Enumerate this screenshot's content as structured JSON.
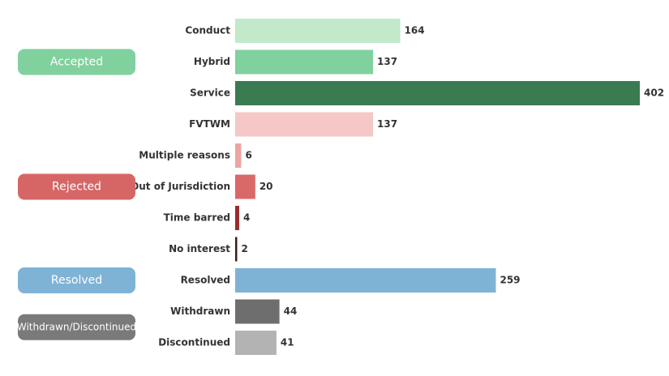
{
  "chart_data": {
    "type": "bar",
    "orientation": "horizontal",
    "groups": [
      {
        "name": "Accepted",
        "color": "#80d19e",
        "categories": [
          "Conduct",
          "Hybrid",
          "Service"
        ],
        "values": [
          164,
          137,
          402
        ],
        "colors": [
          "#c2e9c9",
          "#80d19e",
          "#3b7b51"
        ]
      },
      {
        "name": "Rejected",
        "color": "#d66666",
        "categories": [
          "FVTWM",
          "Multiple reasons",
          "Out of Jurisdiction",
          "Time barred",
          "No interest"
        ],
        "values": [
          137,
          6,
          20,
          4,
          2
        ],
        "colors": [
          "#f6c7c7",
          "#eda4a4",
          "#d96868",
          "#9a2c2c",
          "#3a1a1a"
        ]
      },
      {
        "name": "Resolved",
        "color": "#7fb3d6",
        "categories": [
          "Resolved"
        ],
        "values": [
          259
        ],
        "colors": [
          "#7fb3d6"
        ]
      },
      {
        "name": "Withdrawn/Discontinued",
        "color": "#7a7a7a",
        "categories": [
          "Withdrawn",
          "Discontinued"
        ],
        "values": [
          44,
          41
        ],
        "colors": [
          "#6e6e6e",
          "#b3b3b3"
        ]
      }
    ]
  }
}
